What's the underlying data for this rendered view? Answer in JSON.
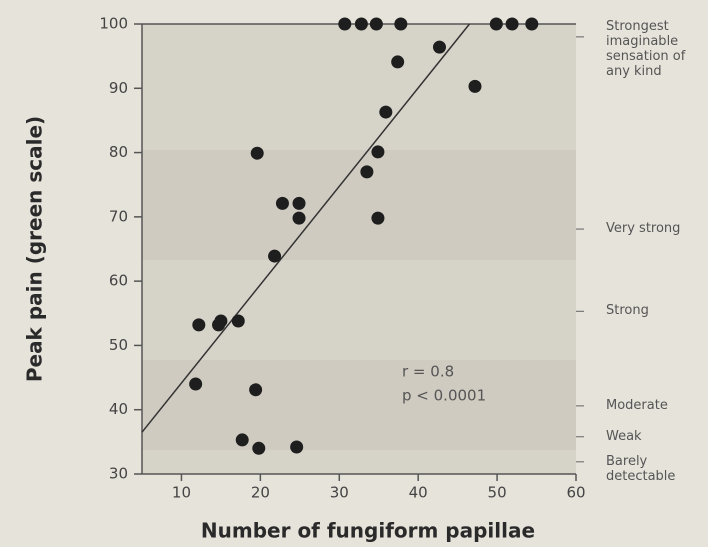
{
  "chart_data": {
    "type": "scatter",
    "xlabel": "Number of fungiform papillae",
    "ylabel": "Peak pain (green scale)",
    "xlim": [
      5,
      60
    ],
    "xticks": [
      10,
      20,
      30,
      40,
      50,
      60
    ],
    "ylim": [
      30,
      100
    ],
    "yticks": [
      30,
      40,
      50,
      60,
      70,
      80,
      90,
      100
    ],
    "y2lim": [
      30,
      100
    ],
    "y2ticks": [
      {
        "value": 98,
        "label": "Strongest imaginable sensation of any kind"
      },
      {
        "value": 68.1,
        "label": "Very strong"
      },
      {
        "value": 55.3,
        "label": "Strong"
      },
      {
        "value": 40.6,
        "label": "Moderate"
      },
      {
        "value": 35.8,
        "label": "Weak"
      },
      {
        "value": 31.9,
        "label": "Barely detectable"
      }
    ],
    "annotations": [
      "r = 0.8",
      "p < 0.0001"
    ],
    "series": [
      {
        "color": "#1e1e1e",
        "x": [
          30.7,
          32.8,
          34.7,
          37.8,
          49.9,
          51.9,
          54.4,
          42.7,
          37.4,
          47.2,
          35.9,
          19.6,
          34.9,
          33.5,
          22.8,
          24.9,
          24.9,
          34.9,
          21.8,
          12.2,
          14.7,
          15.0,
          17.2,
          11.8,
          19.4,
          17.7,
          19.8,
          24.6
        ],
        "values": [
          100,
          100,
          100,
          100,
          100,
          100,
          100,
          96.4,
          94.1,
          90.3,
          86.3,
          79.9,
          80.1,
          77,
          72.1,
          72.1,
          69.8,
          69.8,
          63.9,
          53.2,
          53.2,
          53.8,
          53.8,
          44,
          43.1,
          35.3,
          34,
          34.2
        ]
      }
    ],
    "fit_line": {
      "color": "#333333",
      "x": [
        5,
        46.5
      ],
      "values": [
        36.5,
        100
      ]
    }
  }
}
